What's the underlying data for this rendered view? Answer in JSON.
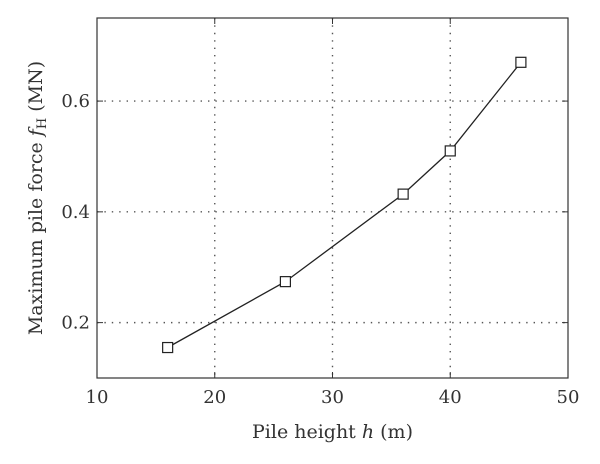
{
  "chart_data": {
    "type": "line",
    "title": "",
    "xlabel": {
      "prefix": "Pile height ",
      "symbol": "h",
      "unit": " (m)"
    },
    "ylabel": {
      "prefix": "Maximum pile force ",
      "symbol": "f",
      "subscript": "H",
      "unit": " (MN)"
    },
    "xlim": [
      10,
      50
    ],
    "ylim": [
      0.1,
      0.75
    ],
    "xticks": [
      10,
      20,
      30,
      40,
      50
    ],
    "yticks": [
      0.2,
      0.4,
      0.6
    ],
    "xtick_labels": [
      "10",
      "20",
      "30",
      "40",
      "50"
    ],
    "ytick_labels": [
      "0.2",
      "0.4",
      "0.6"
    ],
    "grid": true,
    "series": [
      {
        "marker": "square",
        "color": "#222222",
        "x": [
          16,
          26,
          36,
          40,
          46
        ],
        "y": [
          0.155,
          0.274,
          0.432,
          0.51,
          0.67
        ]
      }
    ]
  }
}
